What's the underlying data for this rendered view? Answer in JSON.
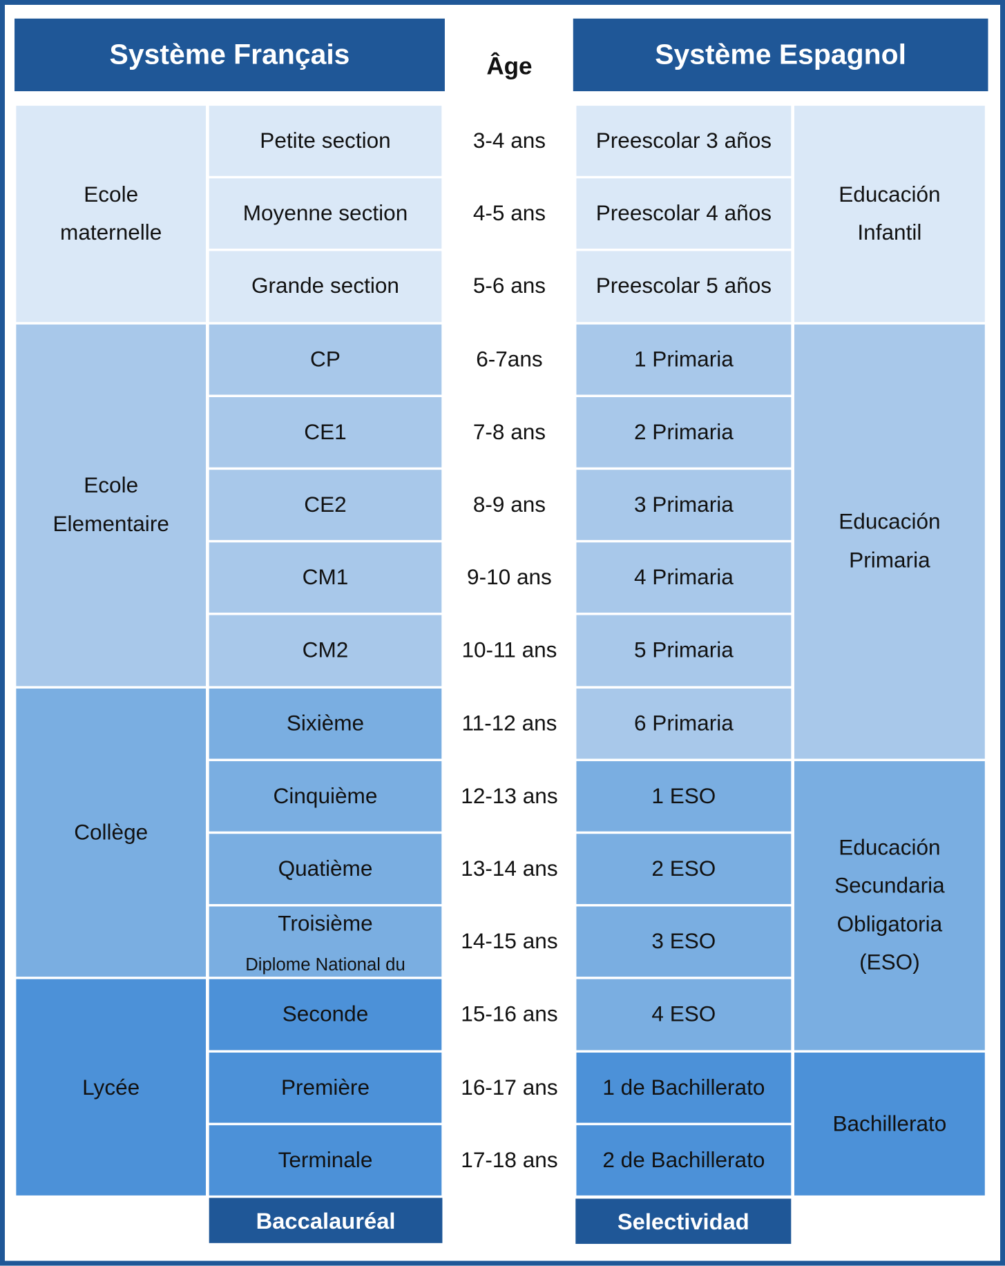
{
  "header": {
    "fr_title": "Système Français",
    "age_title": "Âge",
    "es_title": "Système Espagnol"
  },
  "fr_groups": [
    {
      "label": "Ecole maternelle",
      "levels": [
        {
          "name": "Petite section"
        },
        {
          "name": "Moyenne section"
        },
        {
          "name": "Grande section"
        }
      ]
    },
    {
      "label": "Ecole Elementaire",
      "levels": [
        {
          "name": "CP"
        },
        {
          "name": "CE1"
        },
        {
          "name": "CE2"
        },
        {
          "name": "CM1"
        },
        {
          "name": "CM2"
        }
      ]
    },
    {
      "label": "Collège",
      "levels": [
        {
          "name": "Sixième"
        },
        {
          "name": "Cinquième"
        },
        {
          "name": "Quatième"
        },
        {
          "name": "Troisième",
          "note": "Diplome National du"
        }
      ]
    },
    {
      "label": "Lycée",
      "levels": [
        {
          "name": "Seconde"
        },
        {
          "name": "Première"
        },
        {
          "name": "Terminale"
        }
      ]
    }
  ],
  "ages": [
    "3-4 ans",
    "4-5 ans",
    "5-6 ans",
    "6-7ans",
    "7-8 ans",
    "8-9 ans",
    "9-10 ans",
    "10-11 ans",
    "11-12 ans",
    "12-13 ans",
    "13-14 ans",
    "14-15 ans",
    "15-16  ans",
    "16-17 ans",
    "17-18 ans"
  ],
  "es_groups": [
    {
      "label": "Educación Infantil",
      "levels": [
        "Preescolar 3 años",
        "Preescolar 4 años",
        "Preescolar 5 años"
      ]
    },
    {
      "label": "Educación Primaria",
      "levels": [
        "1 Primaria",
        "2 Primaria",
        "3 Primaria",
        "4 Primaria",
        "5 Primaria",
        "6 Primaria"
      ]
    },
    {
      "label": "Educación Secundaria Obligatoria (ESO)",
      "levels": [
        "1 ESO",
        "2 ESO",
        "3 ESO",
        "4 ESO"
      ]
    },
    {
      "label": "Bachillerato",
      "levels": [
        "1 de Bachillerato",
        "2 de Bachillerato"
      ]
    }
  ],
  "footer": {
    "fr_exam": "Baccalauréal",
    "es_exam": "Selectividad"
  }
}
